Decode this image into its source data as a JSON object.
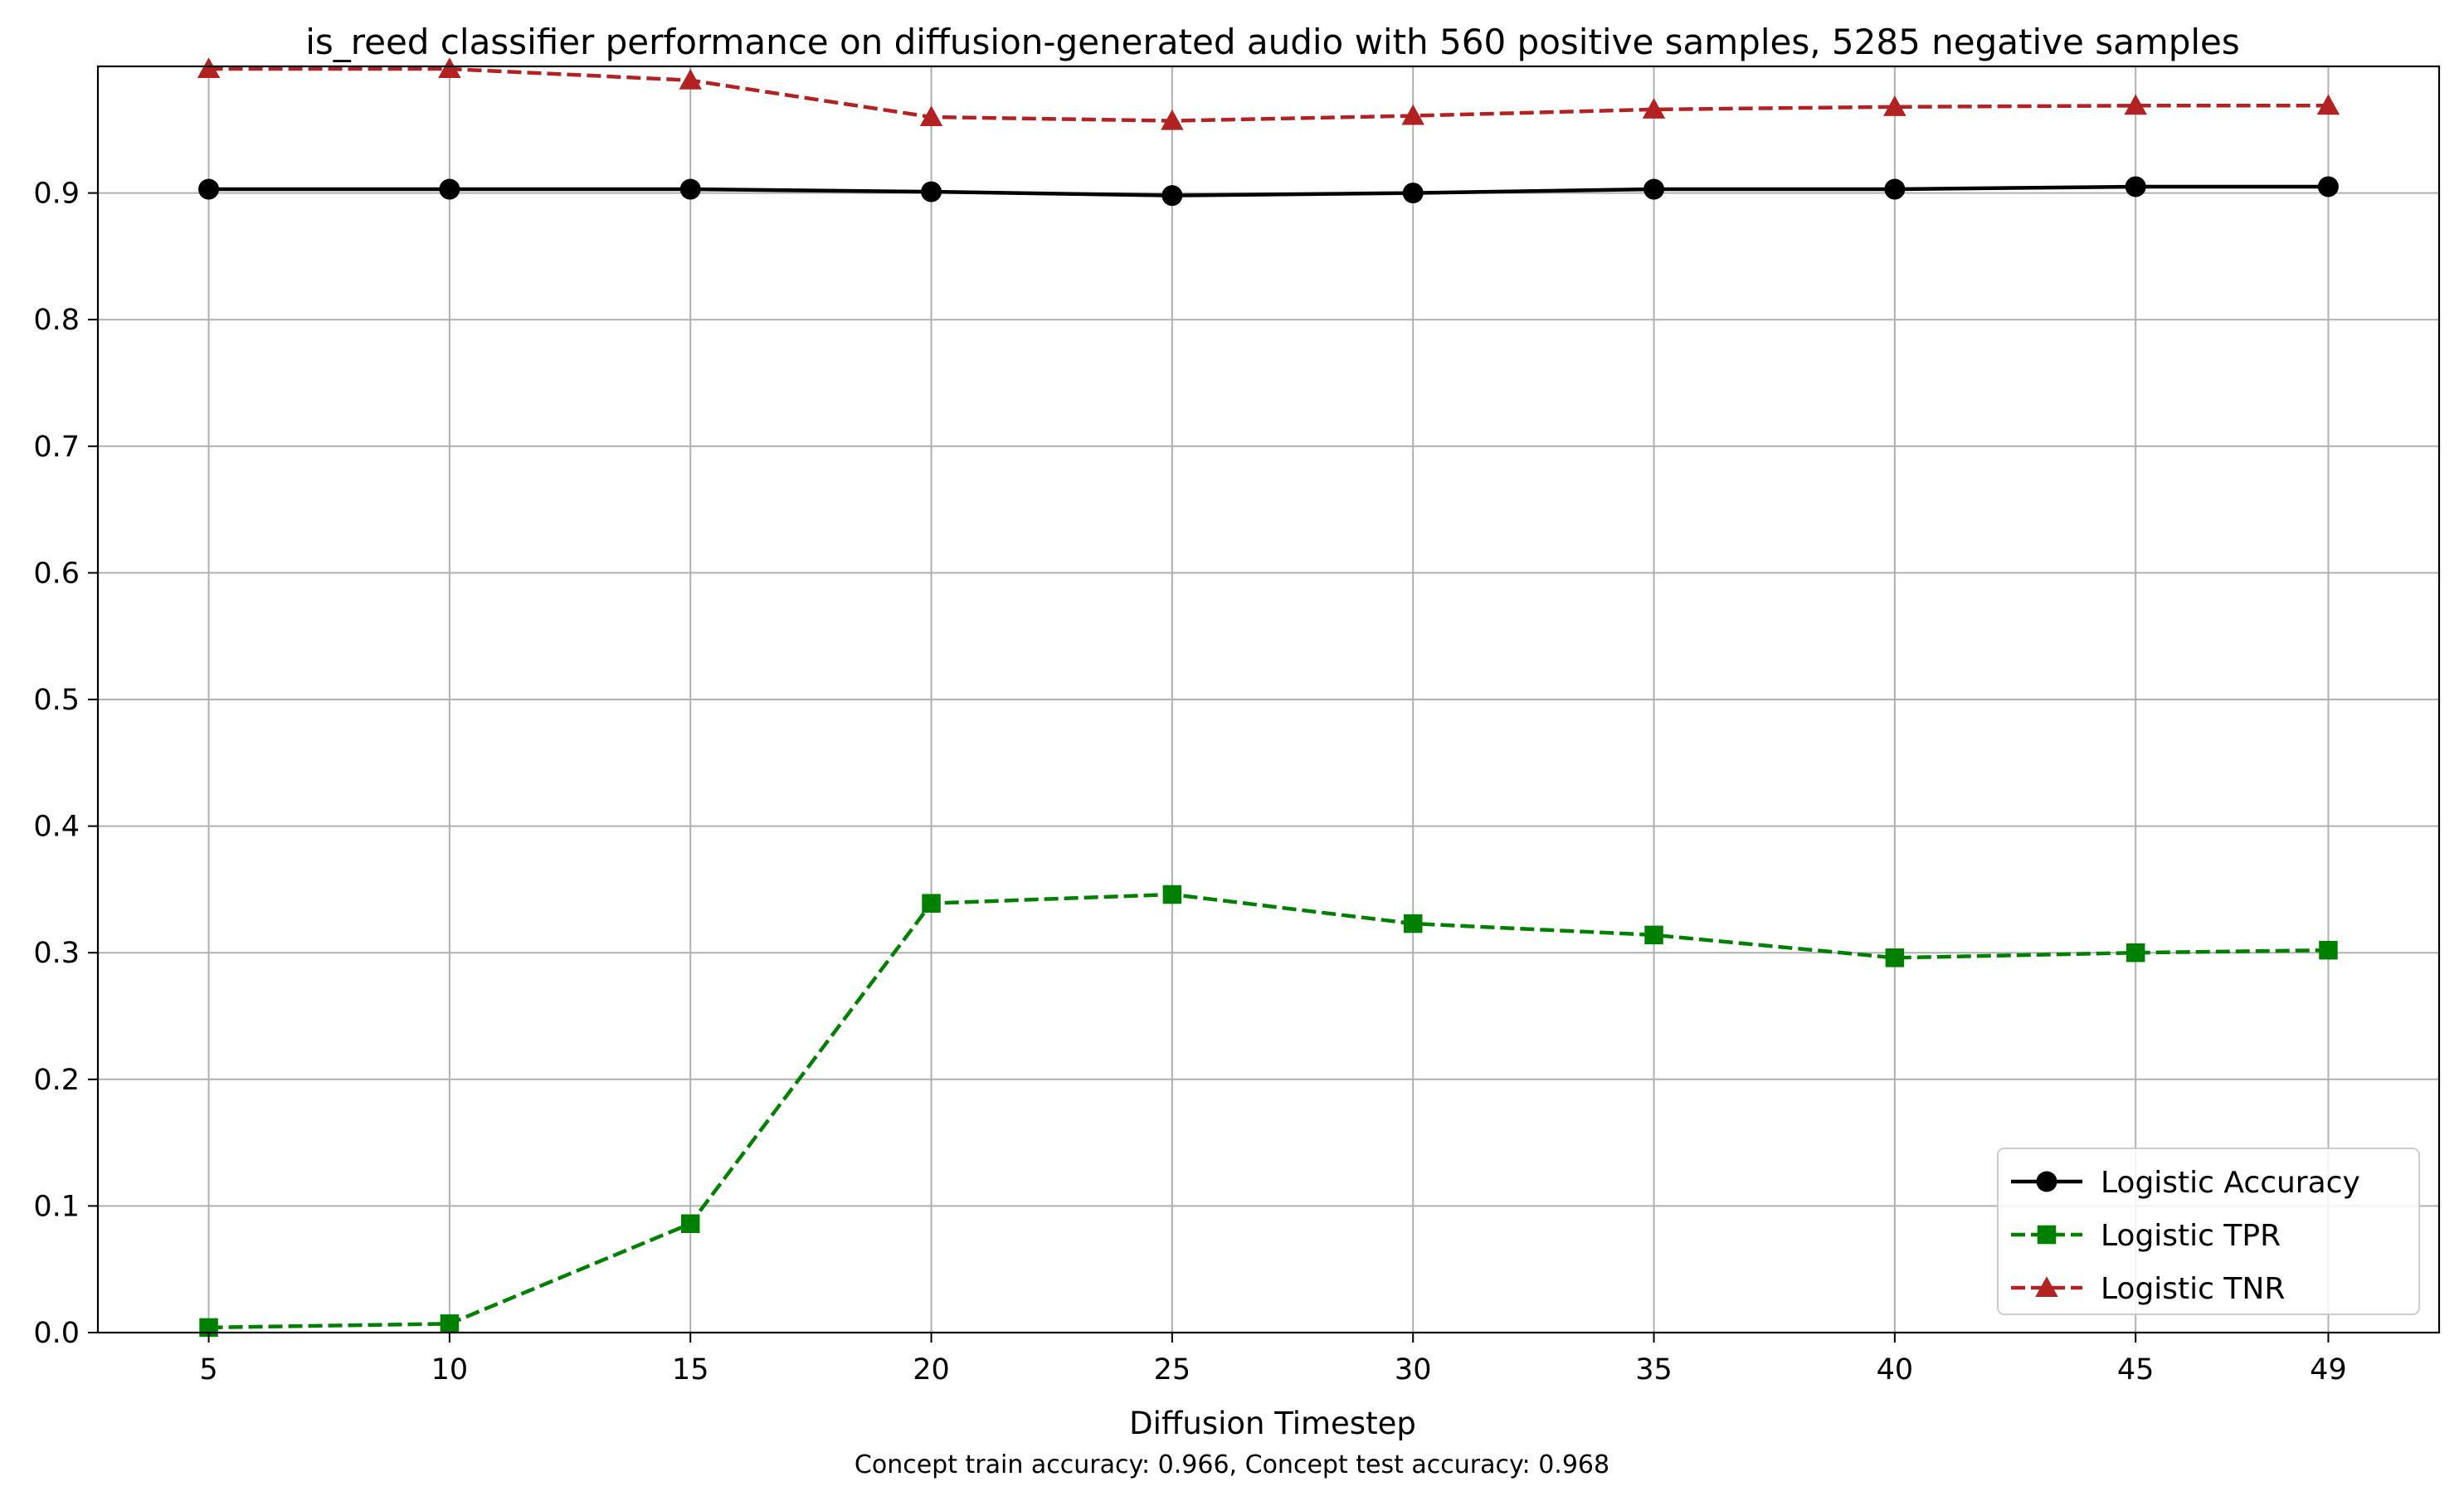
{
  "chart_data": {
    "type": "line",
    "title": "is_reed classifier performance on diffusion-generated audio with 560 positive samples, 5285 negative samples",
    "xlabel": "Diffusion Timestep",
    "ylabel": "",
    "footnote": "Concept train accuracy: 0.966, Concept test accuracy: 0.968",
    "x": [
      5,
      10,
      15,
      20,
      25,
      30,
      35,
      40,
      45,
      49
    ],
    "x_tick_labels": [
      "5",
      "10",
      "15",
      "20",
      "25",
      "30",
      "35",
      "40",
      "45",
      "49"
    ],
    "xlim": [
      2.7,
      51.3
    ],
    "y_ticks": [
      0.0,
      0.1,
      0.2,
      0.3,
      0.4,
      0.5,
      0.6,
      0.7,
      0.8,
      0.9
    ],
    "y_tick_labels": [
      "0.0",
      "0.1",
      "0.2",
      "0.3",
      "0.4",
      "0.5",
      "0.6",
      "0.7",
      "0.8",
      "0.9"
    ],
    "ylim": [
      0.0,
      1.0
    ],
    "grid": true,
    "legend_position": "lower-right",
    "series": [
      {
        "name": "Logistic Accuracy",
        "color": "#000000",
        "line_style": "solid",
        "marker": "circle",
        "values": [
          0.903,
          0.903,
          0.903,
          0.901,
          0.898,
          0.9,
          0.903,
          0.903,
          0.905,
          0.905
        ]
      },
      {
        "name": "Logistic TPR",
        "color": "#008000",
        "line_style": "dashed",
        "marker": "square",
        "values": [
          0.004,
          0.007,
          0.086,
          0.339,
          0.346,
          0.323,
          0.314,
          0.296,
          0.3,
          0.302
        ]
      },
      {
        "name": "Logistic TNR",
        "color": "#b22222",
        "line_style": "dashed",
        "marker": "triangle",
        "values": [
          0.998,
          0.998,
          0.989,
          0.96,
          0.957,
          0.961,
          0.966,
          0.968,
          0.969,
          0.969
        ]
      }
    ]
  }
}
